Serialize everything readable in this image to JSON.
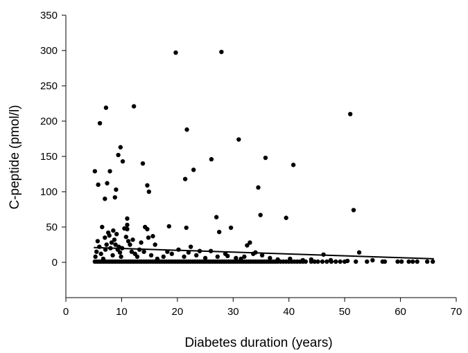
{
  "chart_data": {
    "type": "scatter",
    "title": "",
    "xlabel": "Diabetes duration (years)",
    "ylabel": "C-peptide (pmol/l)",
    "xlim": [
      0,
      70
    ],
    "ylim": [
      -50,
      350
    ],
    "xticks": [
      0,
      10,
      20,
      30,
      40,
      50,
      60,
      70
    ],
    "yticks": [
      0,
      50,
      100,
      150,
      200,
      250,
      300,
      350
    ],
    "grid": false,
    "legend": "none",
    "series": [
      {
        "points": [
          [
            5.2,
            129
          ],
          [
            5.8,
            110
          ],
          [
            6.1,
            197
          ],
          [
            6.5,
            50
          ],
          [
            7.0,
            90
          ],
          [
            7.2,
            219
          ],
          [
            7.4,
            112
          ],
          [
            7.9,
            129
          ],
          [
            8.8,
            92
          ],
          [
            9.0,
            103
          ],
          [
            9.4,
            152
          ],
          [
            9.8,
            163
          ],
          [
            10.2,
            143
          ],
          [
            11.0,
            62
          ],
          [
            11.0,
            53
          ],
          [
            11.0,
            47
          ],
          [
            12.2,
            221
          ],
          [
            13.8,
            140
          ],
          [
            14.6,
            109
          ],
          [
            14.9,
            100
          ],
          [
            14.2,
            50
          ],
          [
            14.6,
            47
          ],
          [
            15.6,
            37
          ],
          [
            16.0,
            25
          ],
          [
            18.5,
            51
          ],
          [
            19.7,
            297
          ],
          [
            21.4,
            118
          ],
          [
            21.7,
            188
          ],
          [
            21.6,
            49
          ],
          [
            22.9,
            131
          ],
          [
            26.1,
            146
          ],
          [
            27.0,
            64
          ],
          [
            27.5,
            43
          ],
          [
            27.9,
            298
          ],
          [
            29.6,
            49
          ],
          [
            31.0,
            174
          ],
          [
            32.5,
            24
          ],
          [
            33.0,
            28
          ],
          [
            34.0,
            14
          ],
          [
            34.5,
            106
          ],
          [
            34.9,
            67
          ],
          [
            35.8,
            148
          ],
          [
            39.5,
            63
          ],
          [
            40.8,
            138
          ],
          [
            46.2,
            11
          ],
          [
            51.0,
            210
          ],
          [
            51.6,
            74
          ],
          [
            52.6,
            14
          ],
          [
            5.3,
            8
          ],
          [
            5.5,
            15
          ],
          [
            5.7,
            30
          ],
          [
            6.0,
            22
          ],
          [
            6.3,
            12
          ],
          [
            6.7,
            5
          ],
          [
            7.0,
            35
          ],
          [
            7.1,
            18
          ],
          [
            7.3,
            25
          ],
          [
            7.6,
            42
          ],
          [
            7.8,
            38
          ],
          [
            8.0,
            20
          ],
          [
            8.2,
            28
          ],
          [
            8.4,
            10
          ],
          [
            8.5,
            45
          ],
          [
            8.7,
            32
          ],
          [
            8.9,
            25
          ],
          [
            9.1,
            40
          ],
          [
            9.3,
            18
          ],
          [
            9.5,
            22
          ],
          [
            9.7,
            14
          ],
          [
            9.9,
            8
          ],
          [
            10.1,
            20
          ],
          [
            10.5,
            48
          ],
          [
            10.8,
            36
          ],
          [
            11.2,
            30
          ],
          [
            11.5,
            25
          ],
          [
            11.8,
            15
          ],
          [
            12.0,
            32
          ],
          [
            12.4,
            12
          ],
          [
            12.8,
            8
          ],
          [
            13.2,
            18
          ],
          [
            13.5,
            28
          ],
          [
            14.0,
            15
          ],
          [
            14.8,
            35
          ],
          [
            15.3,
            10
          ],
          [
            16.4,
            5
          ],
          [
            17.5,
            8
          ],
          [
            18.2,
            15
          ],
          [
            19.0,
            12
          ],
          [
            20.2,
            18
          ],
          [
            21.2,
            8
          ],
          [
            22.0,
            14
          ],
          [
            22.4,
            22
          ],
          [
            23.4,
            10
          ],
          [
            24.0,
            16
          ],
          [
            25.0,
            6
          ],
          [
            26.0,
            16
          ],
          [
            27.2,
            8
          ],
          [
            28.6,
            12
          ],
          [
            29.0,
            9
          ],
          [
            30.5,
            6
          ],
          [
            31.4,
            5
          ],
          [
            32.0,
            8
          ],
          [
            33.6,
            12
          ],
          [
            35.2,
            10
          ],
          [
            36.6,
            6
          ],
          [
            38.0,
            4
          ],
          [
            40.2,
            5
          ],
          [
            42.5,
            3
          ],
          [
            44.0,
            4
          ],
          [
            47.5,
            3
          ],
          [
            50.5,
            2
          ],
          [
            55.0,
            3
          ],
          [
            5.2,
            1
          ],
          [
            5.6,
            1
          ],
          [
            6.0,
            1
          ],
          [
            6.4,
            1
          ],
          [
            6.8,
            1
          ],
          [
            7.2,
            1
          ],
          [
            7.6,
            1
          ],
          [
            8.0,
            1
          ],
          [
            8.4,
            1
          ],
          [
            8.8,
            1
          ],
          [
            9.2,
            1
          ],
          [
            9.6,
            1
          ],
          [
            10.0,
            1
          ],
          [
            10.4,
            1
          ],
          [
            10.8,
            1
          ],
          [
            11.2,
            1
          ],
          [
            11.6,
            1
          ],
          [
            12.0,
            1
          ],
          [
            12.4,
            1
          ],
          [
            12.8,
            1
          ],
          [
            13.2,
            1
          ],
          [
            13.6,
            1
          ],
          [
            14.0,
            1
          ],
          [
            14.4,
            1
          ],
          [
            14.8,
            1
          ],
          [
            15.2,
            1
          ],
          [
            15.6,
            1
          ],
          [
            16.0,
            1
          ],
          [
            16.4,
            1
          ],
          [
            16.8,
            1
          ],
          [
            17.2,
            1
          ],
          [
            17.6,
            1
          ],
          [
            18.0,
            1
          ],
          [
            18.4,
            1
          ],
          [
            18.8,
            1
          ],
          [
            19.2,
            1
          ],
          [
            19.6,
            1
          ],
          [
            20.0,
            1
          ],
          [
            20.4,
            1
          ],
          [
            20.8,
            1
          ],
          [
            21.2,
            1
          ],
          [
            21.6,
            1
          ],
          [
            22.0,
            1
          ],
          [
            22.4,
            1
          ],
          [
            22.8,
            1
          ],
          [
            23.2,
            1
          ],
          [
            23.6,
            1
          ],
          [
            24.0,
            1
          ],
          [
            24.4,
            1
          ],
          [
            24.8,
            1
          ],
          [
            25.2,
            1
          ],
          [
            25.6,
            1
          ],
          [
            26.0,
            1
          ],
          [
            26.4,
            1
          ],
          [
            26.8,
            1
          ],
          [
            27.2,
            1
          ],
          [
            27.6,
            1
          ],
          [
            28.0,
            1
          ],
          [
            28.4,
            1
          ],
          [
            28.8,
            1
          ],
          [
            29.2,
            1
          ],
          [
            29.6,
            1
          ],
          [
            30.0,
            1
          ],
          [
            30.4,
            1
          ],
          [
            30.8,
            1
          ],
          [
            31.2,
            1
          ],
          [
            31.6,
            1
          ],
          [
            32.0,
            1
          ],
          [
            32.4,
            1
          ],
          [
            32.8,
            1
          ],
          [
            33.2,
            1
          ],
          [
            33.6,
            1
          ],
          [
            34.0,
            1
          ],
          [
            34.4,
            1
          ],
          [
            34.8,
            1
          ],
          [
            35.2,
            1
          ],
          [
            35.6,
            1
          ],
          [
            36.0,
            1
          ],
          [
            36.4,
            1
          ],
          [
            36.8,
            1
          ],
          [
            37.2,
            1
          ],
          [
            37.6,
            1
          ],
          [
            38.0,
            1
          ],
          [
            38.5,
            1
          ],
          [
            39.0,
            1
          ],
          [
            39.5,
            1
          ],
          [
            40.0,
            1
          ],
          [
            40.5,
            1
          ],
          [
            41.0,
            1
          ],
          [
            41.5,
            1
          ],
          [
            42.0,
            1
          ],
          [
            42.5,
            1
          ],
          [
            43.0,
            1
          ],
          [
            44.0,
            1
          ],
          [
            44.6,
            1
          ],
          [
            45.2,
            1
          ],
          [
            46.0,
            1
          ],
          [
            46.8,
            1
          ],
          [
            47.6,
            1
          ],
          [
            48.4,
            1
          ],
          [
            49.2,
            1
          ],
          [
            50.0,
            1
          ],
          [
            52.0,
            1
          ],
          [
            54.0,
            1
          ],
          [
            56.8,
            1
          ],
          [
            57.2,
            1
          ],
          [
            59.5,
            1
          ],
          [
            60.2,
            1
          ],
          [
            61.5,
            1
          ],
          [
            62.2,
            1
          ],
          [
            63.0,
            1
          ],
          [
            64.8,
            1
          ],
          [
            65.8,
            1
          ]
        ]
      }
    ],
    "trendline": {
      "x": [
        5,
        66
      ],
      "y": [
        21,
        5
      ]
    }
  }
}
